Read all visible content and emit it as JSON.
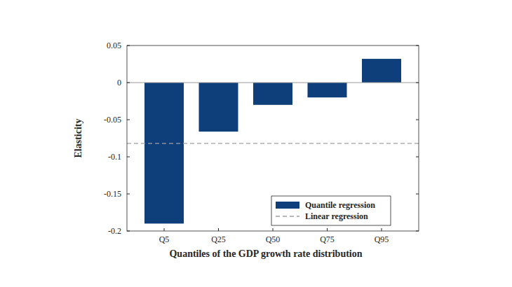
{
  "chart_data": {
    "type": "bar",
    "categories": [
      "Q5",
      "Q25",
      "Q50",
      "Q75",
      "Q95"
    ],
    "series": [
      {
        "name": "Quantile regression",
        "color": "#0e3f7a",
        "values": [
          -0.19,
          -0.066,
          -0.03,
          -0.02,
          0.032
        ]
      }
    ],
    "reference_lines": [
      {
        "name": "Linear regression",
        "value": -0.082,
        "color": "#a0a0a0",
        "line_style": "dashed"
      }
    ],
    "x_label": "Quantiles of the GDP growth rate distribution",
    "y_label": "Elasticity",
    "ylim": [
      -0.2,
      0.05
    ],
    "yticks": [
      -0.2,
      -0.15,
      -0.1,
      -0.05,
      0,
      0.05
    ],
    "grid": false,
    "legend": "lower right"
  }
}
